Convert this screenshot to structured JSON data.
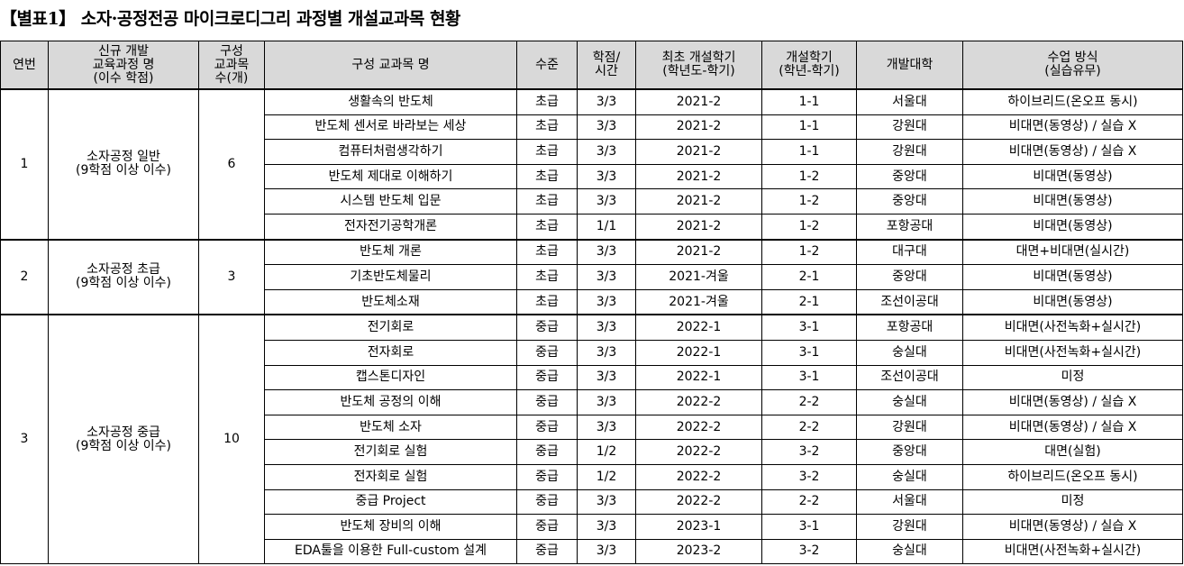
{
  "title": "【별표1】 소자·공정전공 마이크로디그리 과정별 개설교과목 현황",
  "headers": [
    "연번",
    "신규 개발\n교육과정 명\n(이수 학점)",
    "구성\n교과목\n수(개)",
    "구성 교과목 명",
    "수준",
    "학점/\n시간",
    "최초 개설학기\n(학년도-학기)",
    "개설학기\n(학년-학기)",
    "개발대학",
    "수업 방식\n(실습유무)"
  ],
  "groups": [
    {
      "no": "1",
      "course": "소자공정 일반\n(9학점 이상 이수)",
      "count": "6",
      "rows": [
        [
          "생활속의 반도체",
          "초급",
          "3/3",
          "2021-2",
          "1-1",
          "서울대",
          "하이브리드(온오프 동시)"
        ],
        [
          "반도체 센서로 바라보는 세상",
          "초급",
          "3/3",
          "2021-2",
          "1-1",
          "강원대",
          "비대면(동영상) / 실습 X"
        ],
        [
          "컴퓨터처럼생각하기",
          "초급",
          "3/3",
          "2021-2",
          "1-1",
          "강원대",
          "비대면(동영상) / 실습 X"
        ],
        [
          "반도체 제대로 이해하기",
          "초급",
          "3/3",
          "2021-2",
          "1-2",
          "중앙대",
          "비대면(동영상)"
        ],
        [
          "시스템 반도체 입문",
          "초급",
          "3/3",
          "2021-2",
          "1-2",
          "중앙대",
          "비대면(동영상)"
        ],
        [
          "전자전기공학개론",
          "초급",
          "1/1",
          "2021-2",
          "1-2",
          "포항공대",
          "비대면(동영상)"
        ]
      ]
    },
    {
      "no": "2",
      "course": "소자공정 초급\n(9학점 이상 이수)",
      "count": "3",
      "rows": [
        [
          "반도체 개론",
          "초급",
          "3/3",
          "2021-2",
          "1-2",
          "대구대",
          "대면+비대면(실시간)"
        ],
        [
          "기초반도체물리",
          "초급",
          "3/3",
          "2021-겨울",
          "2-1",
          "중앙대",
          "비대면(동영상)"
        ],
        [
          "반도체소재",
          "초급",
          "3/3",
          "2021-겨울",
          "2-1",
          "조선이공대",
          "비대면(동영상)"
        ]
      ]
    },
    {
      "no": "3",
      "course": "소자공정 중급\n(9학점 이상 이수)",
      "count": "10",
      "rows": [
        [
          "전기회로",
          "중급",
          "3/3",
          "2022-1",
          "3-1",
          "포항공대",
          "비대면(사전녹화+실시간)"
        ],
        [
          "전자회로",
          "중급",
          "3/3",
          "2022-1",
          "3-1",
          "숭실대",
          "비대면(사전녹화+실시간)"
        ],
        [
          "캡스톤디자인",
          "중급",
          "3/3",
          "2022-1",
          "3-1",
          "조선이공대",
          "미정"
        ],
        [
          "반도체 공정의 이해",
          "중급",
          "3/3",
          "2022-2",
          "2-2",
          "숭실대",
          "비대면(동영상) / 실습 X"
        ],
        [
          "반도체 소자",
          "중급",
          "3/3",
          "2022-2",
          "2-2",
          "강원대",
          "비대면(동영상) / 실습 X"
        ],
        [
          "전기회로 실험",
          "중급",
          "1/2",
          "2022-2",
          "3-2",
          "중앙대",
          "대면(실험)"
        ],
        [
          "전자회로 실험",
          "중급",
          "1/2",
          "2022-2",
          "3-2",
          "숭실대",
          "하이브리드(온오프 동시)"
        ],
        [
          "중급 Project",
          "중급",
          "3/3",
          "2022-2",
          "2-2",
          "서울대",
          "미정"
        ],
        [
          "반도체 장비의 이해",
          "중급",
          "3/3",
          "2023-1",
          "3-1",
          "강원대",
          "비대면(동영상) / 실습 X"
        ],
        [
          "EDA툴을 이용한 Full-custom 설계",
          "중급",
          "3/3",
          "2023-2",
          "3-2",
          "숭실대",
          "비대면(사전녹화+실시간)"
        ]
      ]
    }
  ]
}
